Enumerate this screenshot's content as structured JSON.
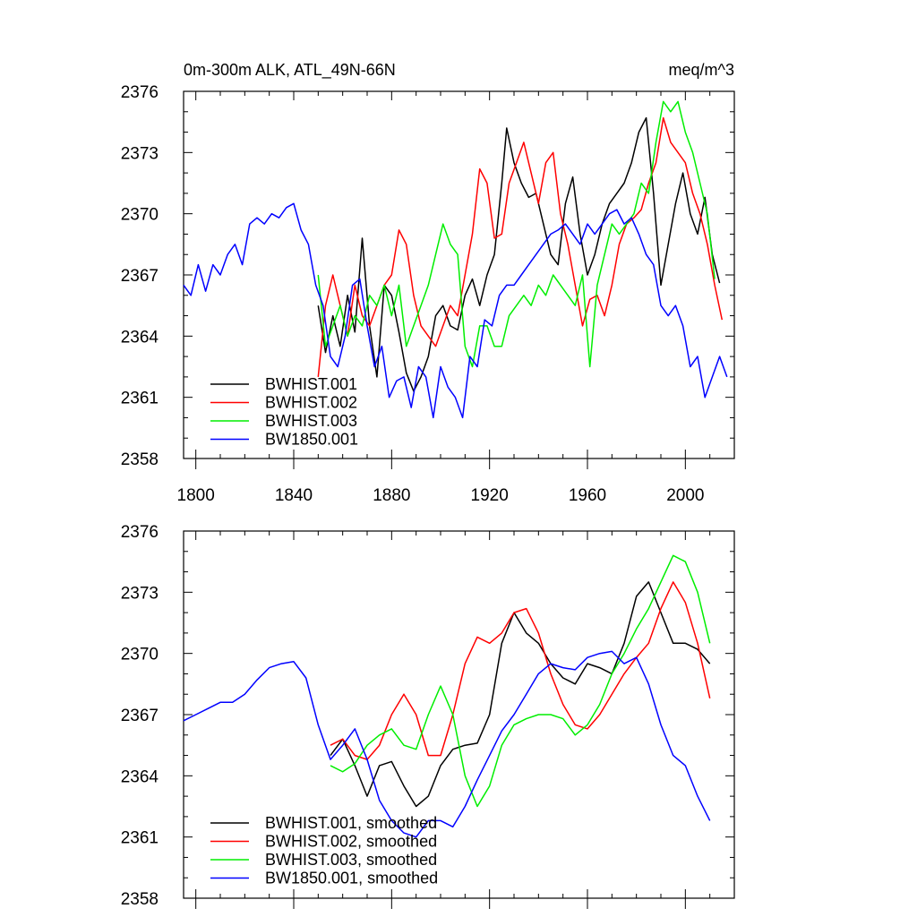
{
  "chart_data": [
    {
      "type": "line",
      "title": "0m-300m ALK, ATL_49N-66N",
      "units": "meq/m^3",
      "xlabel": "",
      "ylabel": "",
      "xlim": [
        1795,
        2020
      ],
      "ylim": [
        2358,
        2376
      ],
      "xticks": [
        1800,
        1840,
        1880,
        1920,
        1960,
        2000
      ],
      "xtick_labels": [
        "1800",
        "1840",
        "1880",
        "1920",
        "1960",
        "2000"
      ],
      "yticks": [
        2358,
        2361,
        2364,
        2367,
        2370,
        2373,
        2376
      ],
      "ytick_labels": [
        "2358",
        "2361",
        "2364",
        "2367",
        "2370",
        "2373",
        "2376"
      ],
      "legend_position": "bottom-left",
      "series": [
        {
          "name": "BWHIST.001",
          "color": "#000000",
          "x": [
            1850,
            1853,
            1856,
            1859,
            1862,
            1865,
            1868,
            1871,
            1874,
            1877,
            1880,
            1883,
            1886,
            1889,
            1892,
            1895,
            1898,
            1901,
            1904,
            1907,
            1910,
            1913,
            1916,
            1919,
            1922,
            1925,
            1927,
            1930,
            1933,
            1936,
            1939,
            1942,
            1945,
            1948,
            1951,
            1954,
            1957,
            1960,
            1963,
            1966,
            1969,
            1972,
            1975,
            1978,
            1981,
            1984,
            1987,
            1990,
            1993,
            1996,
            1999,
            2002,
            2005,
            2008,
            2011,
            2014
          ],
          "y": [
            2365.5,
            2363.2,
            2365.0,
            2363.5,
            2366.0,
            2364.2,
            2368.8,
            2364.5,
            2362.0,
            2366.5,
            2366.0,
            2364.2,
            2362.2,
            2361.3,
            2362.0,
            2363.0,
            2365.0,
            2365.5,
            2364.5,
            2364.3,
            2366.0,
            2366.8,
            2365.5,
            2367.0,
            2368.0,
            2371.5,
            2374.2,
            2372.5,
            2371.5,
            2370.8,
            2371.0,
            2369.5,
            2368.0,
            2367.5,
            2370.5,
            2371.8,
            2369.0,
            2367.0,
            2368.0,
            2369.5,
            2370.5,
            2371.0,
            2371.5,
            2372.5,
            2374.0,
            2374.7,
            2371.0,
            2366.5,
            2368.5,
            2370.5,
            2372.0,
            2370.0,
            2369.0,
            2370.8,
            2368.0,
            2366.6
          ]
        },
        {
          "name": "BWHIST.002",
          "color": "#ff0000",
          "x": [
            1850,
            1853,
            1856,
            1859,
            1862,
            1865,
            1868,
            1871,
            1874,
            1877,
            1880,
            1883,
            1886,
            1889,
            1892,
            1895,
            1898,
            1901,
            1904,
            1907,
            1910,
            1913,
            1916,
            1919,
            1922,
            1925,
            1928,
            1931,
            1934,
            1937,
            1940,
            1943,
            1946,
            1949,
            1952,
            1955,
            1958,
            1961,
            1964,
            1967,
            1970,
            1973,
            1976,
            1979,
            1982,
            1985,
            1988,
            1991,
            1994,
            1997,
            2000,
            2003,
            2006,
            2009,
            2012,
            2015
          ],
          "y": [
            2362.0,
            2365.5,
            2367.0,
            2365.5,
            2364.0,
            2366.5,
            2365.0,
            2364.5,
            2365.5,
            2366.5,
            2367.0,
            2369.2,
            2368.5,
            2366.0,
            2364.5,
            2364.0,
            2363.5,
            2364.5,
            2365.5,
            2365.0,
            2367.0,
            2369.0,
            2372.2,
            2371.5,
            2368.8,
            2369.0,
            2371.5,
            2372.5,
            2373.5,
            2372.0,
            2370.5,
            2372.5,
            2373.0,
            2370.0,
            2368.5,
            2366.5,
            2364.5,
            2365.8,
            2366.0,
            2365.0,
            2366.5,
            2368.5,
            2369.5,
            2369.8,
            2370.2,
            2371.5,
            2372.5,
            2374.7,
            2373.5,
            2373.0,
            2372.5,
            2371.0,
            2370.0,
            2368.5,
            2366.5,
            2364.8
          ]
        },
        {
          "name": "BWHIST.003",
          "color": "#00ee00",
          "x": [
            1850,
            1853,
            1856,
            1859,
            1862,
            1865,
            1868,
            1871,
            1874,
            1877,
            1880,
            1883,
            1886,
            1889,
            1892,
            1895,
            1898,
            1901,
            1904,
            1907,
            1910,
            1913,
            1916,
            1919,
            1922,
            1925,
            1928,
            1931,
            1934,
            1937,
            1940,
            1943,
            1946,
            1949,
            1952,
            1955,
            1958,
            1961,
            1964,
            1967,
            1970,
            1973,
            1976,
            1979,
            1982,
            1985,
            1988,
            1991,
            1994,
            1997,
            2000,
            2003,
            2006,
            2009,
            2012
          ],
          "y": [
            2367.0,
            2363.5,
            2364.5,
            2365.5,
            2364.0,
            2365.0,
            2364.5,
            2366.0,
            2365.5,
            2366.5,
            2365.0,
            2366.5,
            2363.5,
            2364.5,
            2365.5,
            2366.5,
            2368.0,
            2369.5,
            2368.5,
            2368.0,
            2363.5,
            2362.5,
            2364.5,
            2364.5,
            2363.5,
            2363.5,
            2365.0,
            2365.5,
            2366.0,
            2365.5,
            2366.5,
            2366.0,
            2367.0,
            2366.5,
            2366.0,
            2365.5,
            2367.0,
            2362.5,
            2366.5,
            2368.0,
            2369.5,
            2369.0,
            2369.5,
            2370.0,
            2371.5,
            2371.0,
            2373.5,
            2375.5,
            2375.0,
            2375.5,
            2374.0,
            2373.0,
            2371.5,
            2370.0,
            2366.8
          ]
        },
        {
          "name": "BW1850.001",
          "color": "#0000ff",
          "x": [
            1795,
            1798,
            1801,
            1804,
            1807,
            1810,
            1813,
            1816,
            1819,
            1822,
            1825,
            1828,
            1831,
            1834,
            1837,
            1840,
            1843,
            1846,
            1849,
            1852,
            1855,
            1858,
            1861,
            1864,
            1867,
            1870,
            1873,
            1876,
            1879,
            1882,
            1885,
            1888,
            1891,
            1894,
            1897,
            1900,
            1903,
            1906,
            1909,
            1912,
            1915,
            1918,
            1921,
            1924,
            1927,
            1930,
            1933,
            1936,
            1939,
            1942,
            1945,
            1948,
            1951,
            1954,
            1957,
            1960,
            1963,
            1966,
            1969,
            1972,
            1975,
            1978,
            1981,
            1984,
            1987,
            1990,
            1993,
            1996,
            1999,
            2002,
            2005,
            2008,
            2011,
            2014,
            2017
          ],
          "y": [
            2366.5,
            2366.0,
            2367.5,
            2366.2,
            2367.5,
            2367.0,
            2368.0,
            2368.5,
            2367.5,
            2369.5,
            2369.8,
            2369.5,
            2370.0,
            2369.8,
            2370.3,
            2370.5,
            2369.2,
            2368.5,
            2366.5,
            2365.5,
            2363.0,
            2362.5,
            2364.0,
            2366.5,
            2366.8,
            2364.5,
            2362.5,
            2363.5,
            2361.0,
            2361.8,
            2362.0,
            2360.5,
            2362.5,
            2362.0,
            2360.0,
            2362.5,
            2361.5,
            2361.0,
            2360.0,
            2363.0,
            2362.5,
            2364.8,
            2364.5,
            2366.0,
            2366.5,
            2366.5,
            2367.0,
            2367.5,
            2368.0,
            2368.5,
            2369.0,
            2369.2,
            2369.5,
            2369.0,
            2368.5,
            2369.5,
            2369.0,
            2369.5,
            2370.0,
            2370.2,
            2369.5,
            2369.8,
            2369.0,
            2368.0,
            2367.5,
            2365.5,
            2365.0,
            2365.5,
            2364.5,
            2362.5,
            2363.0,
            2361.0,
            2362.0,
            2363.0,
            2362.0
          ]
        }
      ]
    },
    {
      "type": "line",
      "title": "",
      "xlabel": "",
      "ylabel": "",
      "xlim": [
        1795,
        2020
      ],
      "ylim": [
        2358,
        2376
      ],
      "xticks": [
        1800,
        1840,
        1880,
        1920,
        1960,
        2000
      ],
      "yticks": [
        2358,
        2361,
        2364,
        2367,
        2370,
        2373,
        2376
      ],
      "ytick_labels": [
        "2358",
        "2361",
        "2364",
        "2367",
        "2370",
        "2373",
        "2376"
      ],
      "legend_position": "bottom-left",
      "series": [
        {
          "name": "BWHIST.001, smoothed",
          "color": "#000000",
          "x": [
            1855,
            1860,
            1865,
            1870,
            1875,
            1880,
            1885,
            1890,
            1895,
            1900,
            1905,
            1910,
            1915,
            1920,
            1925,
            1930,
            1935,
            1940,
            1945,
            1950,
            1955,
            1960,
            1965,
            1970,
            1975,
            1980,
            1985,
            1990,
            1995,
            2000,
            2005,
            2010
          ],
          "y": [
            2365.0,
            2365.8,
            2364.5,
            2363.0,
            2364.5,
            2364.7,
            2363.5,
            2362.5,
            2363.0,
            2364.5,
            2365.3,
            2365.5,
            2365.6,
            2367.0,
            2370.5,
            2372.0,
            2371.0,
            2370.5,
            2369.5,
            2368.8,
            2368.5,
            2369.5,
            2369.3,
            2369.0,
            2370.5,
            2372.8,
            2373.5,
            2372.0,
            2370.5,
            2370.5,
            2370.2,
            2369.5
          ]
        },
        {
          "name": "BWHIST.002, smoothed",
          "color": "#ff0000",
          "x": [
            1855,
            1860,
            1865,
            1870,
            1875,
            1880,
            1885,
            1890,
            1895,
            1900,
            1905,
            1910,
            1915,
            1920,
            1925,
            1930,
            1935,
            1940,
            1945,
            1950,
            1955,
            1960,
            1965,
            1970,
            1975,
            1980,
            1985,
            1990,
            1995,
            2000,
            2005,
            2010
          ],
          "y": [
            2365.5,
            2365.8,
            2365.0,
            2364.8,
            2365.5,
            2367.0,
            2368.0,
            2367.0,
            2365.0,
            2365.0,
            2367.0,
            2369.5,
            2370.8,
            2370.5,
            2371.0,
            2372.0,
            2372.2,
            2371.0,
            2369.0,
            2367.5,
            2366.5,
            2366.3,
            2367.0,
            2368.0,
            2369.0,
            2369.8,
            2370.5,
            2372.2,
            2373.5,
            2372.5,
            2370.5,
            2367.8
          ]
        },
        {
          "name": "BWHIST.003, smoothed",
          "color": "#00ee00",
          "x": [
            1855,
            1860,
            1865,
            1870,
            1875,
            1880,
            1885,
            1890,
            1895,
            1900,
            1905,
            1910,
            1915,
            1920,
            1925,
            1930,
            1935,
            1940,
            1945,
            1950,
            1955,
            1960,
            1965,
            1970,
            1975,
            1980,
            1985,
            1990,
            1995,
            2000,
            2005,
            2010
          ],
          "y": [
            2364.5,
            2364.2,
            2364.6,
            2365.5,
            2366.0,
            2366.3,
            2365.5,
            2365.3,
            2367.0,
            2368.4,
            2367.0,
            2364.0,
            2362.5,
            2363.5,
            2365.5,
            2366.5,
            2366.8,
            2367.0,
            2367.0,
            2366.8,
            2366.0,
            2366.5,
            2367.5,
            2369.0,
            2370.0,
            2371.2,
            2372.2,
            2373.5,
            2374.8,
            2374.5,
            2373.0,
            2370.5
          ]
        },
        {
          "name": "BW1850.001, smoothed",
          "color": "#0000ff",
          "x": [
            1795,
            1800,
            1805,
            1810,
            1815,
            1820,
            1825,
            1830,
            1835,
            1840,
            1845,
            1850,
            1855,
            1860,
            1865,
            1870,
            1875,
            1880,
            1885,
            1890,
            1895,
            1900,
            1905,
            1910,
            1915,
            1920,
            1925,
            1930,
            1935,
            1940,
            1945,
            1950,
            1955,
            1960,
            1965,
            1970,
            1975,
            1980,
            1985,
            1990,
            1995,
            2000,
            2005,
            2010
          ],
          "y": [
            2366.7,
            2367.0,
            2367.3,
            2367.6,
            2367.6,
            2368.0,
            2368.7,
            2369.3,
            2369.5,
            2369.6,
            2368.8,
            2366.5,
            2364.8,
            2365.5,
            2366.3,
            2364.8,
            2362.8,
            2361.8,
            2361.2,
            2361.0,
            2361.8,
            2361.8,
            2361.5,
            2362.5,
            2363.8,
            2365.0,
            2366.2,
            2367.0,
            2368.0,
            2369.0,
            2369.5,
            2369.3,
            2369.2,
            2369.8,
            2370.0,
            2370.1,
            2369.5,
            2369.8,
            2368.5,
            2366.5,
            2365.0,
            2364.5,
            2363.0,
            2361.8
          ]
        }
      ]
    }
  ]
}
